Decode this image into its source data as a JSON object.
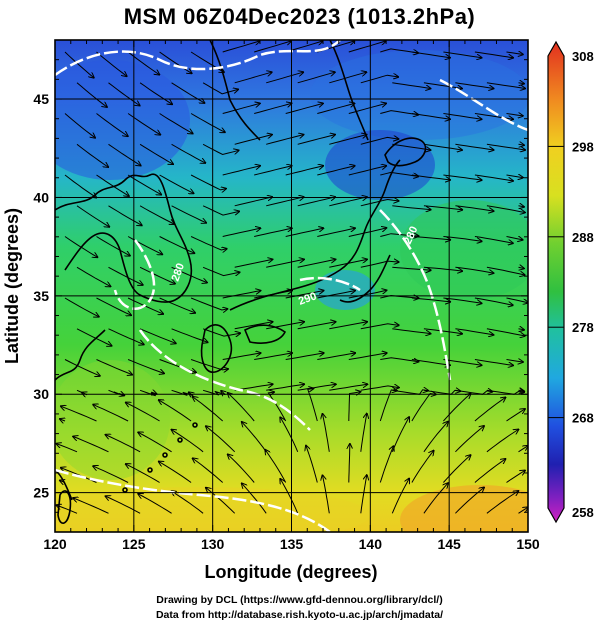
{
  "title": "MSM 06Z04Dec2023 (1013.2hPa)",
  "map": {
    "lon_range": [
      120,
      150
    ],
    "lat_range": [
      23,
      48
    ],
    "x_ticks": [
      "120",
      "125",
      "130",
      "135",
      "140",
      "145",
      "150"
    ],
    "y_ticks": [
      "25",
      "30",
      "35",
      "40",
      "45"
    ],
    "xlabel": "Longitude (degrees)",
    "ylabel": "Latitude  (degrees)",
    "contour_labels": [
      "280",
      "280",
      "290"
    ],
    "variable_colors": {
      "cold": "#2040d0",
      "cool": "#20c0c0",
      "mid": "#30c040",
      "warm": "#e0e020",
      "hot": "#f0a020",
      "contour": "#ffffff",
      "coast": "#000000",
      "streamline": "#000000"
    }
  },
  "colorbar": {
    "labels": [
      "308",
      "298",
      "288",
      "278",
      "268",
      "258"
    ],
    "range": [
      258,
      308
    ]
  },
  "footer": {
    "line1": "Drawing by DCL (https://www.gfd-dennou.org/library/dcl/)",
    "line2": "Data from http://database.rish.kyoto-u.ac.jp/arch/jmadata/"
  }
}
